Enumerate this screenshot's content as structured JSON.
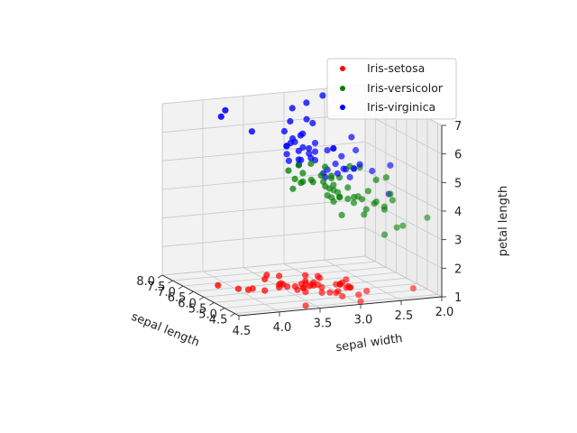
{
  "chart_data": {
    "type": "scatter",
    "projection": "3d",
    "title": "",
    "xlabel": "sepal length",
    "ylabel": "sepal width",
    "zlabel": "petal length",
    "x_ticks": [
      "4.5",
      "5.0",
      "5.5",
      "6.0",
      "6.5",
      "7.0",
      "7.5",
      "8.0"
    ],
    "y_ticks": [
      "2.0",
      "2.5",
      "3.0",
      "3.5",
      "4.0",
      "4.5"
    ],
    "z_ticks": [
      "1",
      "2",
      "3",
      "4",
      "5",
      "6",
      "7"
    ],
    "xlim": [
      4.3,
      8.0
    ],
    "ylim": [
      2.0,
      4.5
    ],
    "zlim": [
      1.0,
      7.0
    ],
    "grid": true,
    "legend_position": "top-right",
    "series": [
      {
        "name": "Iris-setosa",
        "color": "#ff0000",
        "points": [
          [
            5.1,
            3.5,
            1.4
          ],
          [
            4.9,
            3.0,
            1.4
          ],
          [
            4.7,
            3.2,
            1.3
          ],
          [
            4.6,
            3.1,
            1.5
          ],
          [
            5.0,
            3.6,
            1.4
          ],
          [
            5.4,
            3.9,
            1.7
          ],
          [
            4.6,
            3.4,
            1.4
          ],
          [
            5.0,
            3.4,
            1.5
          ],
          [
            4.4,
            2.9,
            1.4
          ],
          [
            4.9,
            3.1,
            1.5
          ],
          [
            5.4,
            3.7,
            1.5
          ],
          [
            4.8,
            3.4,
            1.6
          ],
          [
            4.8,
            3.0,
            1.4
          ],
          [
            4.3,
            3.0,
            1.1
          ],
          [
            5.8,
            4.0,
            1.2
          ],
          [
            5.7,
            4.4,
            1.5
          ],
          [
            5.4,
            3.9,
            1.3
          ],
          [
            5.1,
            3.5,
            1.4
          ],
          [
            5.7,
            3.8,
            1.7
          ],
          [
            5.1,
            3.8,
            1.5
          ],
          [
            5.4,
            3.4,
            1.7
          ],
          [
            5.1,
            3.7,
            1.5
          ],
          [
            4.6,
            3.6,
            1.0
          ],
          [
            5.1,
            3.3,
            1.7
          ],
          [
            4.8,
            3.4,
            1.9
          ],
          [
            5.0,
            3.0,
            1.6
          ],
          [
            5.0,
            3.4,
            1.6
          ],
          [
            5.2,
            3.5,
            1.5
          ],
          [
            5.2,
            3.4,
            1.4
          ],
          [
            4.7,
            3.2,
            1.6
          ],
          [
            4.8,
            3.1,
            1.6
          ],
          [
            5.4,
            3.4,
            1.5
          ],
          [
            5.2,
            4.1,
            1.5
          ],
          [
            5.5,
            4.2,
            1.4
          ],
          [
            4.9,
            3.1,
            1.5
          ],
          [
            5.0,
            3.2,
            1.2
          ],
          [
            5.5,
            3.5,
            1.3
          ],
          [
            4.9,
            3.1,
            1.5
          ],
          [
            4.4,
            3.0,
            1.3
          ],
          [
            5.1,
            3.4,
            1.5
          ],
          [
            5.0,
            3.5,
            1.3
          ],
          [
            4.5,
            2.3,
            1.3
          ],
          [
            4.4,
            3.2,
            1.3
          ],
          [
            5.0,
            3.5,
            1.6
          ],
          [
            5.1,
            3.8,
            1.9
          ],
          [
            4.8,
            3.0,
            1.4
          ],
          [
            5.1,
            3.8,
            1.6
          ],
          [
            4.6,
            3.2,
            1.4
          ],
          [
            5.3,
            3.7,
            1.5
          ],
          [
            5.0,
            3.3,
            1.4
          ]
        ]
      },
      {
        "name": "Iris-versicolor",
        "color": "#008000",
        "points": [
          [
            7.0,
            3.2,
            4.7
          ],
          [
            6.4,
            3.2,
            4.5
          ],
          [
            6.9,
            3.1,
            4.9
          ],
          [
            5.5,
            2.3,
            4.0
          ],
          [
            6.5,
            2.8,
            4.6
          ],
          [
            5.7,
            2.8,
            4.5
          ],
          [
            6.3,
            3.3,
            4.7
          ],
          [
            4.9,
            2.4,
            3.3
          ],
          [
            6.6,
            2.9,
            4.6
          ],
          [
            5.2,
            2.7,
            3.9
          ],
          [
            5.0,
            2.0,
            3.5
          ],
          [
            5.9,
            3.0,
            4.2
          ],
          [
            6.0,
            2.2,
            4.0
          ],
          [
            6.1,
            2.9,
            4.7
          ],
          [
            5.6,
            2.9,
            3.6
          ],
          [
            6.7,
            3.1,
            4.4
          ],
          [
            5.6,
            3.0,
            4.5
          ],
          [
            5.8,
            2.7,
            4.1
          ],
          [
            6.2,
            2.2,
            4.5
          ],
          [
            5.6,
            2.5,
            3.9
          ],
          [
            5.9,
            3.2,
            4.8
          ],
          [
            6.1,
            2.8,
            4.0
          ],
          [
            6.3,
            2.5,
            4.9
          ],
          [
            6.1,
            2.8,
            4.7
          ],
          [
            6.4,
            2.9,
            4.3
          ],
          [
            6.6,
            3.0,
            4.4
          ],
          [
            6.8,
            2.8,
            4.8
          ],
          [
            6.7,
            3.0,
            5.0
          ],
          [
            6.0,
            2.9,
            4.5
          ],
          [
            5.7,
            2.6,
            3.5
          ],
          [
            5.5,
            2.4,
            3.8
          ],
          [
            5.5,
            2.4,
            3.7
          ],
          [
            5.8,
            2.7,
            3.9
          ],
          [
            6.0,
            2.7,
            5.1
          ],
          [
            5.4,
            3.0,
            4.5
          ],
          [
            6.0,
            3.4,
            4.5
          ],
          [
            6.7,
            3.1,
            4.7
          ],
          [
            6.3,
            2.3,
            4.4
          ],
          [
            5.6,
            3.0,
            4.1
          ],
          [
            5.5,
            2.5,
            4.0
          ],
          [
            5.5,
            2.6,
            4.4
          ],
          [
            6.1,
            3.0,
            4.6
          ],
          [
            5.8,
            2.6,
            4.0
          ],
          [
            5.0,
            2.3,
            3.3
          ],
          [
            5.6,
            2.7,
            4.2
          ],
          [
            5.7,
            3.0,
            4.2
          ],
          [
            5.7,
            2.9,
            4.2
          ],
          [
            6.2,
            2.9,
            4.3
          ],
          [
            5.1,
            2.5,
            3.0
          ],
          [
            5.7,
            2.8,
            4.1
          ]
        ]
      },
      {
        "name": "Iris-virginica",
        "color": "#0000ff",
        "points": [
          [
            6.3,
            3.3,
            6.0
          ],
          [
            5.8,
            2.7,
            5.1
          ],
          [
            7.1,
            3.0,
            5.9
          ],
          [
            6.3,
            2.9,
            5.6
          ],
          [
            6.5,
            3.0,
            5.8
          ],
          [
            7.6,
            3.0,
            6.6
          ],
          [
            4.9,
            2.5,
            4.5
          ],
          [
            7.3,
            2.9,
            6.3
          ],
          [
            6.7,
            2.5,
            5.8
          ],
          [
            7.2,
            3.6,
            6.1
          ],
          [
            6.5,
            3.2,
            5.1
          ],
          [
            6.4,
            2.7,
            5.3
          ],
          [
            6.8,
            3.0,
            5.5
          ],
          [
            5.7,
            2.5,
            5.0
          ],
          [
            5.8,
            2.8,
            5.1
          ],
          [
            6.4,
            3.2,
            5.3
          ],
          [
            6.5,
            3.0,
            5.5
          ],
          [
            7.7,
            3.8,
            6.7
          ],
          [
            7.7,
            2.6,
            6.9
          ],
          [
            6.0,
            2.2,
            5.0
          ],
          [
            6.9,
            3.2,
            5.7
          ],
          [
            5.6,
            2.8,
            4.9
          ],
          [
            7.7,
            2.8,
            6.7
          ],
          [
            6.3,
            2.7,
            4.9
          ],
          [
            6.7,
            3.3,
            5.7
          ],
          [
            7.2,
            3.2,
            6.0
          ],
          [
            6.2,
            2.8,
            4.8
          ],
          [
            6.1,
            3.0,
            4.9
          ],
          [
            6.4,
            2.8,
            5.6
          ],
          [
            7.2,
            3.0,
            5.8
          ],
          [
            7.4,
            2.8,
            6.1
          ],
          [
            7.9,
            3.8,
            6.4
          ],
          [
            6.4,
            2.8,
            5.6
          ],
          [
            6.3,
            2.8,
            5.1
          ],
          [
            6.1,
            2.6,
            5.6
          ],
          [
            7.7,
            3.0,
            6.1
          ],
          [
            6.3,
            3.4,
            5.6
          ],
          [
            6.4,
            3.1,
            5.5
          ],
          [
            6.0,
            3.0,
            4.8
          ],
          [
            6.9,
            3.1,
            5.4
          ],
          [
            6.7,
            3.1,
            5.6
          ],
          [
            6.9,
            3.1,
            5.1
          ],
          [
            5.8,
            2.7,
            5.1
          ],
          [
            6.8,
            3.2,
            5.9
          ],
          [
            6.7,
            3.3,
            5.7
          ],
          [
            6.7,
            3.0,
            5.2
          ],
          [
            6.3,
            2.5,
            5.0
          ],
          [
            6.5,
            3.0,
            5.2
          ],
          [
            6.2,
            3.4,
            5.4
          ],
          [
            5.9,
            3.0,
            5.1
          ]
        ]
      }
    ]
  }
}
